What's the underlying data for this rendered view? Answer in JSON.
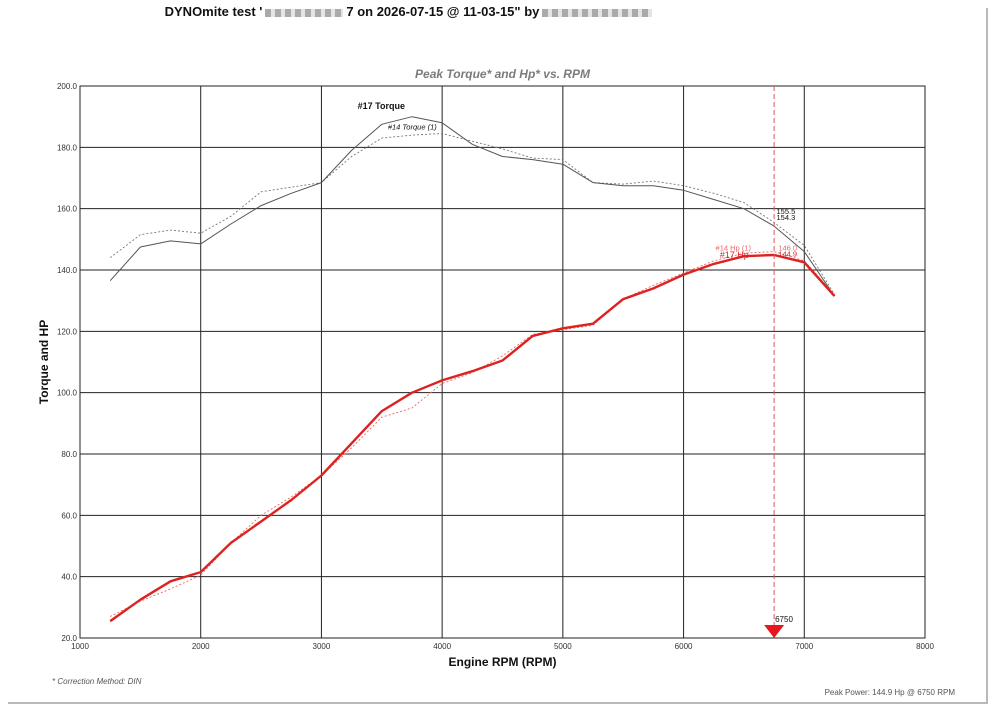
{
  "header": {
    "title_prefix": "DYNOmite test '",
    "title_suffix": "7 on 2026-07-15 @ 11-03-15\" by"
  },
  "footer": {
    "correction": "* Correction Method: DIN",
    "peak_power": "Peak Power: 144.9 Hp @ 6750 RPM"
  },
  "chart_data": {
    "type": "line",
    "title": "Peak Torque* and Hp* vs. RPM",
    "xlabel": "Engine RPM (RPM)",
    "ylabel": "Torque and HP",
    "xlim": [
      1000,
      8000
    ],
    "ylim": [
      20,
      200
    ],
    "x_ticks": [
      "1000",
      "2000",
      "3000",
      "4000",
      "5000",
      "6000",
      "7000",
      "8000"
    ],
    "y_ticks": [
      "20.0",
      "40.0",
      "60.0",
      "80.0",
      "100.0",
      "120.0",
      "140.0",
      "160.0",
      "180.0",
      "200.0"
    ],
    "grid": true,
    "series": [
      {
        "name": "#17 Torque",
        "color": "#555555",
        "style": "solid",
        "points": [
          [
            1250,
            136.5
          ],
          [
            1500,
            147.5
          ],
          [
            1750,
            149.5
          ],
          [
            2000,
            148.5
          ],
          [
            2250,
            155
          ],
          [
            2500,
            161
          ],
          [
            2750,
            165
          ],
          [
            3000,
            168.5
          ],
          [
            3250,
            179
          ],
          [
            3500,
            187.5
          ],
          [
            3750,
            190
          ],
          [
            4000,
            188
          ],
          [
            4250,
            181
          ],
          [
            4500,
            177
          ],
          [
            4750,
            176
          ],
          [
            5000,
            174.5
          ],
          [
            5250,
            168.5
          ],
          [
            5500,
            167.5
          ],
          [
            5750,
            167.5
          ],
          [
            6000,
            166
          ],
          [
            6250,
            163
          ],
          [
            6500,
            160
          ],
          [
            6750,
            154.3
          ],
          [
            7000,
            146
          ],
          [
            7250,
            131.5
          ]
        ]
      },
      {
        "name": "#14 Torque (1)",
        "color": "#777777",
        "style": "dashed",
        "points": [
          [
            1250,
            144
          ],
          [
            1500,
            151.5
          ],
          [
            1750,
            153
          ],
          [
            2000,
            152
          ],
          [
            2250,
            157.5
          ],
          [
            2500,
            165.5
          ],
          [
            2750,
            167
          ],
          [
            3000,
            168.5
          ],
          [
            3250,
            177
          ],
          [
            3500,
            183
          ],
          [
            3750,
            184
          ],
          [
            4000,
            184.5
          ],
          [
            4250,
            182
          ],
          [
            4500,
            179.5
          ],
          [
            4750,
            176.5
          ],
          [
            5000,
            176
          ],
          [
            5250,
            168.5
          ],
          [
            5500,
            168
          ],
          [
            5750,
            169
          ],
          [
            6000,
            167.5
          ],
          [
            6250,
            165
          ],
          [
            6500,
            162
          ],
          [
            6750,
            155.5
          ],
          [
            7000,
            148
          ],
          [
            7250,
            132
          ]
        ]
      },
      {
        "name": "#17 Hp",
        "color": "#dd2222",
        "style": "solid",
        "points": [
          [
            1250,
            25.5
          ],
          [
            1500,
            32.5
          ],
          [
            1750,
            38.5
          ],
          [
            2000,
            41.5
          ],
          [
            2250,
            51
          ],
          [
            2500,
            58
          ],
          [
            2750,
            65
          ],
          [
            3000,
            73
          ],
          [
            3250,
            83.5
          ],
          [
            3500,
            94
          ],
          [
            3750,
            100
          ],
          [
            4000,
            104
          ],
          [
            4250,
            107
          ],
          [
            4500,
            110.5
          ],
          [
            4750,
            118.5
          ],
          [
            5000,
            121
          ],
          [
            5250,
            122.5
          ],
          [
            5500,
            130.5
          ],
          [
            5750,
            134
          ],
          [
            6000,
            138.5
          ],
          [
            6250,
            142
          ],
          [
            6500,
            144.5
          ],
          [
            6750,
            144.9
          ],
          [
            7000,
            142.5
          ],
          [
            7250,
            131.5
          ]
        ]
      },
      {
        "name": "#14 Hp (1)",
        "color": "#ee6666",
        "style": "dashed",
        "points": [
          [
            1250,
            27
          ],
          [
            1500,
            32
          ],
          [
            1750,
            36
          ],
          [
            2000,
            40.5
          ],
          [
            2250,
            51
          ],
          [
            2500,
            60
          ],
          [
            2750,
            66
          ],
          [
            3000,
            73
          ],
          [
            3250,
            82
          ],
          [
            3500,
            92
          ],
          [
            3750,
            95
          ],
          [
            4000,
            103
          ],
          [
            4250,
            106.5
          ],
          [
            4500,
            112
          ],
          [
            4750,
            119
          ],
          [
            5000,
            120.5
          ],
          [
            5250,
            122
          ],
          [
            5500,
            130.5
          ],
          [
            5750,
            135
          ],
          [
            6000,
            139
          ],
          [
            6250,
            143
          ],
          [
            6500,
            145.5
          ],
          [
            6750,
            146
          ],
          [
            7000,
            143
          ],
          [
            7250,
            132
          ]
        ]
      }
    ],
    "annotations": {
      "series_label_17_torque": "#17 Torque",
      "series_label_14_torque": "#14 Torque (1)",
      "series_label_17_hp": "#17 Hp",
      "series_label_14_hp": "#14 Hp (1)",
      "torque_value_14": "155.5",
      "torque_value_17": "154.3",
      "hp_value_14": "146.0",
      "hp_value_17": "144.9",
      "marker_rpm": 6750,
      "marker_label": "6750"
    },
    "colors": {
      "marker": "#e8161e",
      "cursor_line": "#e05555",
      "grid": "#222222"
    }
  }
}
